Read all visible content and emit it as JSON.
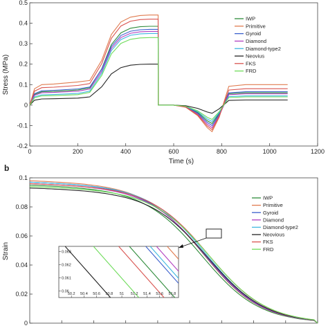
{
  "chart_data": [
    {
      "type": "line",
      "panel_label": "",
      "xlabel": "Time (s)",
      "ylabel": "Stress (MPa)",
      "xlim": [
        0,
        1200
      ],
      "ylim": [
        -0.2,
        0.5
      ],
      "xticks": [
        0,
        200,
        400,
        600,
        800,
        1000,
        1200
      ],
      "yticks": [
        -0.2,
        -0.1,
        0,
        0.1,
        0.2,
        0.3,
        0.4,
        0.5
      ],
      "grid": false,
      "legend_position": "top-right",
      "series": [
        {
          "name": "IWP",
          "color": "#2e8b3a",
          "plateau": 0.065,
          "peak": 0.385,
          "min": -0.09,
          "relax": 0.06
        },
        {
          "name": "Primitive",
          "color": "#e07b4f",
          "plateau": 0.1,
          "peak": 0.44,
          "min": -0.13,
          "relax": 0.1
        },
        {
          "name": "Gyroid",
          "color": "#3a5fcd",
          "plateau": 0.07,
          "peak": 0.37,
          "min": -0.1,
          "relax": 0.065
        },
        {
          "name": "Diamond",
          "color": "#b03fc0",
          "plateau": 0.06,
          "peak": 0.36,
          "min": -0.11,
          "relax": 0.055
        },
        {
          "name": "Diamond-type2",
          "color": "#3fb8e0",
          "plateau": 0.05,
          "peak": 0.35,
          "min": -0.08,
          "relax": 0.045
        },
        {
          "name": "Neovius",
          "color": "#222222",
          "plateau": 0.03,
          "peak": 0.2,
          "min": -0.04,
          "relax": 0.025
        },
        {
          "name": "FKS",
          "color": "#d9534f",
          "plateau": 0.085,
          "peak": 0.42,
          "min": -0.12,
          "relax": 0.08
        },
        {
          "name": "FRD",
          "color": "#6edc5a",
          "plateau": 0.045,
          "peak": 0.33,
          "min": -0.07,
          "relax": 0.04
        }
      ],
      "x_key": [
        0,
        20,
        50,
        100,
        200,
        250,
        300,
        340,
        380,
        420,
        460,
        500,
        535,
        536,
        600,
        650,
        700,
        740,
        760,
        790,
        830,
        900,
        1000,
        1075
      ]
    },
    {
      "type": "line",
      "panel_label": "b",
      "xlabel": "",
      "ylabel": "Strain",
      "ylim": [
        0,
        0.1
      ],
      "yticks": [
        0,
        0.02,
        0.04,
        0.06,
        0.08,
        0.1
      ],
      "legend_position": "top-right",
      "series": [
        {
          "name": "IWP",
          "color": "#2e8b3a",
          "start": 0.095
        },
        {
          "name": "Primitive",
          "color": "#e07b4f",
          "start": 0.098
        },
        {
          "name": "Gyroid",
          "color": "#3a5fcd",
          "start": 0.097
        },
        {
          "name": "Diamond",
          "color": "#b03fc0",
          "start": 0.096
        },
        {
          "name": "Diamond-type2",
          "color": "#3fb8e0",
          "start": 0.097
        },
        {
          "name": "Neovious",
          "color": "#222222",
          "start": 0.093
        },
        {
          "name": "FKS",
          "color": "#d9534f",
          "start": 0.096
        },
        {
          "name": "FRD",
          "color": "#6edc5a",
          "start": 0.094
        }
      ],
      "inset": {
        "xlim": [
          50,
          51.9
        ],
        "ylim": [
          0.0595,
          0.0634
        ],
        "xticks": [
          50.2,
          50.4,
          50.6,
          50.8,
          51,
          51.2,
          51.4,
          51.6,
          51.8
        ],
        "xtick_labels": [
          "50.2",
          "50.4",
          "50.6",
          "50.8",
          "51",
          "51.2",
          "51.4",
          "51.6",
          "51.8"
        ],
        "yticks": [
          0.06,
          0.061,
          0.062,
          0.063
        ],
        "ytick_labels": [
          "0.06",
          "0.061",
          "0.062",
          "0.063"
        ],
        "line_x_at_top": [
          {
            "name": "Neovious",
            "x": 50.1
          },
          {
            "name": "FRD",
            "x": 50.55
          },
          {
            "name": "FKS",
            "x": 50.95
          },
          {
            "name": "IWP",
            "x": 51.12
          },
          {
            "name": "Gyroid",
            "x": 51.38
          },
          {
            "name": "Diamond-type2",
            "x": 51.45
          },
          {
            "name": "Diamond",
            "x": 51.55
          },
          {
            "name": "Primitive",
            "x": 51.72
          }
        ]
      }
    }
  ]
}
